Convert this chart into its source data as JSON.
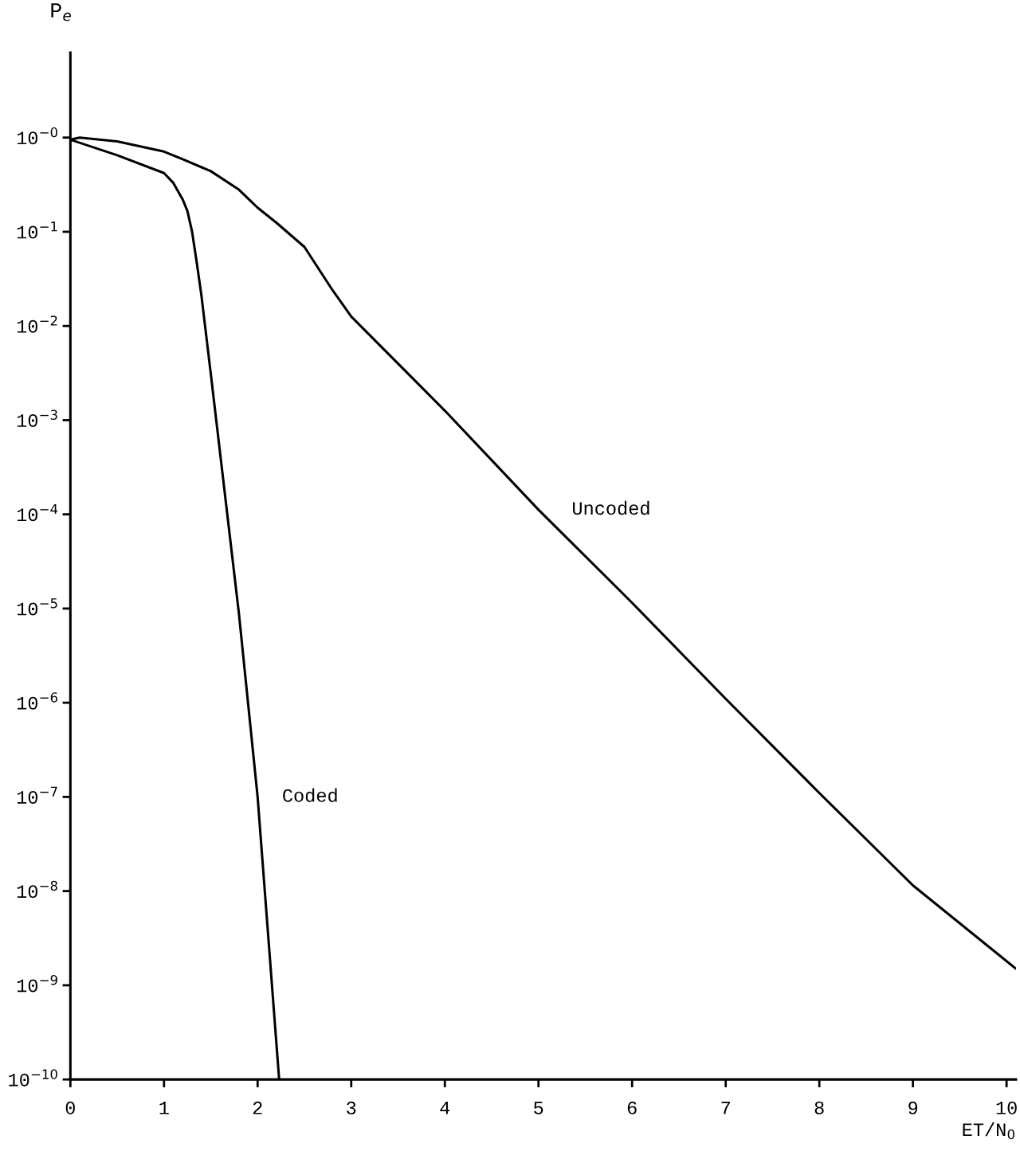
{
  "chart_data": {
    "type": "line",
    "xlabel": "ET/N$_{0}$",
    "ylabel": "P$_{e}$",
    "log": "y",
    "grid": false,
    "legend": false,
    "marker": "none",
    "line_style": "solid",
    "xlim": [
      0,
      10.1
    ],
    "xticks": [
      0,
      1,
      2,
      3,
      4,
      5,
      6,
      7,
      8,
      9,
      10
    ],
    "ylim": [
      1e-10,
      8
    ],
    "yticks": [
      {
        "value": 1,
        "label": "10$^{−0}$"
      },
      {
        "value": 0.1,
        "label": "10$^{−1}$"
      },
      {
        "value": 0.01,
        "label": "10$^{−2}$"
      },
      {
        "value": 0.001,
        "label": "10$^{−3}$"
      },
      {
        "value": 0.0001,
        "label": "10$^{−4}$"
      },
      {
        "value": 1e-05,
        "label": "10$^{−5}$"
      },
      {
        "value": 1e-06,
        "label": "10$^{−6}$"
      },
      {
        "value": 1e-07,
        "label": "10$^{−7}$"
      },
      {
        "value": 1e-08,
        "label": "10$^{−8}$"
      },
      {
        "value": 1e-09,
        "label": "10$^{−9}$"
      },
      {
        "value": 1e-10,
        "label": "10$^{−10}$"
      }
    ],
    "series": [
      {
        "name": "Coded",
        "color": "#000000",
        "x": [
          0,
          0.5,
          1,
          1.1,
          1.2,
          1.25,
          1.3,
          1.35,
          1.4,
          1.5,
          1.8,
          2.0,
          2.23
        ],
        "values": [
          0.95,
          0.65,
          0.42,
          0.33,
          0.22,
          0.166,
          0.1,
          0.047,
          0.021,
          0.0031,
          8.9e-06,
          1e-07,
          1e-10
        ]
      },
      {
        "name": "Uncoded",
        "color": "#000000",
        "x": [
          0,
          0.1,
          0.5,
          1,
          1.2,
          1.5,
          1.8,
          2,
          2.2,
          2.5,
          2.8,
          3,
          4,
          5,
          6,
          7,
          8,
          9,
          10.1
        ],
        "values": [
          0.95,
          1.0,
          0.91,
          0.71,
          0.59,
          0.44,
          0.28,
          0.18,
          0.125,
          0.069,
          0.024,
          0.0126,
          0.00126,
          0.000112,
          1.15e-05,
          1.1e-06,
          1.1e-07,
          1.15e-08,
          1.5e-09
        ]
      }
    ]
  }
}
